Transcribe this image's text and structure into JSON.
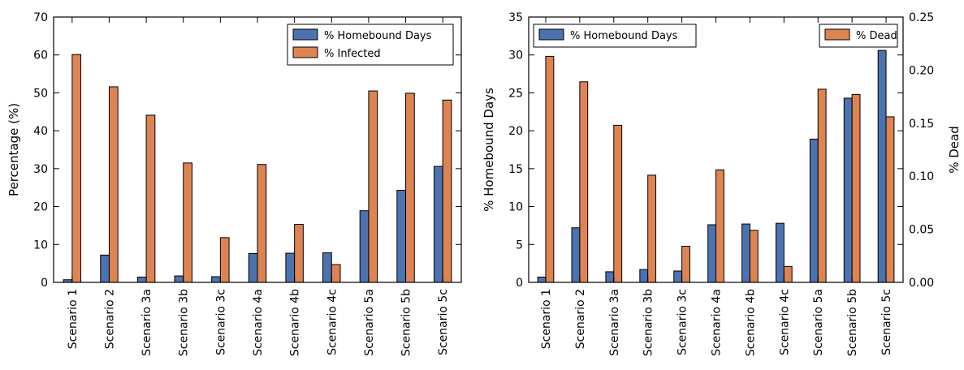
{
  "colors": {
    "homebound": "#4c72b0",
    "infected": "#dd8452",
    "dead": "#dd8452"
  },
  "chart_data": [
    {
      "type": "bar",
      "categories": [
        "Scenario 1",
        "Scenario 2",
        "Scenario 3a",
        "Scenario 3b",
        "Scenario 3c",
        "Scenario 4a",
        "Scenario 4b",
        "Scenario 4c",
        "Scenario 5a",
        "Scenario 5b",
        "Scenario 5c"
      ],
      "ylabel": "Percentage (%)",
      "ylim": [
        0,
        70
      ],
      "yticks": [
        "0",
        "10",
        "20",
        "30",
        "40",
        "50",
        "60",
        "70"
      ],
      "legend_placement": "top-right",
      "series": [
        {
          "name": "% Homebound Days",
          "values": [
            0.7,
            7.2,
            1.4,
            1.7,
            1.5,
            7.6,
            7.7,
            7.8,
            18.9,
            24.3,
            30.6
          ]
        },
        {
          "name": "% Infected",
          "values": [
            60.1,
            51.6,
            44.1,
            31.5,
            11.8,
            31.1,
            15.3,
            4.7,
            50.5,
            49.9,
            48.1
          ]
        }
      ]
    },
    {
      "type": "bar",
      "categories": [
        "Scenario 1",
        "Scenario 2",
        "Scenario 3a",
        "Scenario 3b",
        "Scenario 3c",
        "Scenario 4a",
        "Scenario 4b",
        "Scenario 4c",
        "Scenario 5a",
        "Scenario 5b",
        "Scenario 5c"
      ],
      "ylabel": "% Homebound Days",
      "y2label": "% Dead",
      "ylim": [
        0,
        35
      ],
      "y2lim": [
        0,
        0.25
      ],
      "yticks": [
        "0",
        "5",
        "10",
        "15",
        "20",
        "25",
        "30",
        "35"
      ],
      "y2ticks": [
        "0.00",
        "0.05",
        "0.10",
        "0.15",
        "0.20",
        "0.25"
      ],
      "series": [
        {
          "name": "% Homebound Days",
          "axis": "left",
          "legend_placement": "top-left",
          "values": [
            0.7,
            7.2,
            1.4,
            1.7,
            1.5,
            7.6,
            7.7,
            7.8,
            18.9,
            24.3,
            30.6
          ]
        },
        {
          "name": "% Dead",
          "axis": "right",
          "legend_placement": "top-right",
          "values": [
            0.213,
            0.189,
            0.148,
            0.101,
            0.034,
            0.106,
            0.049,
            0.015,
            0.182,
            0.177,
            0.156
          ]
        }
      ]
    }
  ]
}
